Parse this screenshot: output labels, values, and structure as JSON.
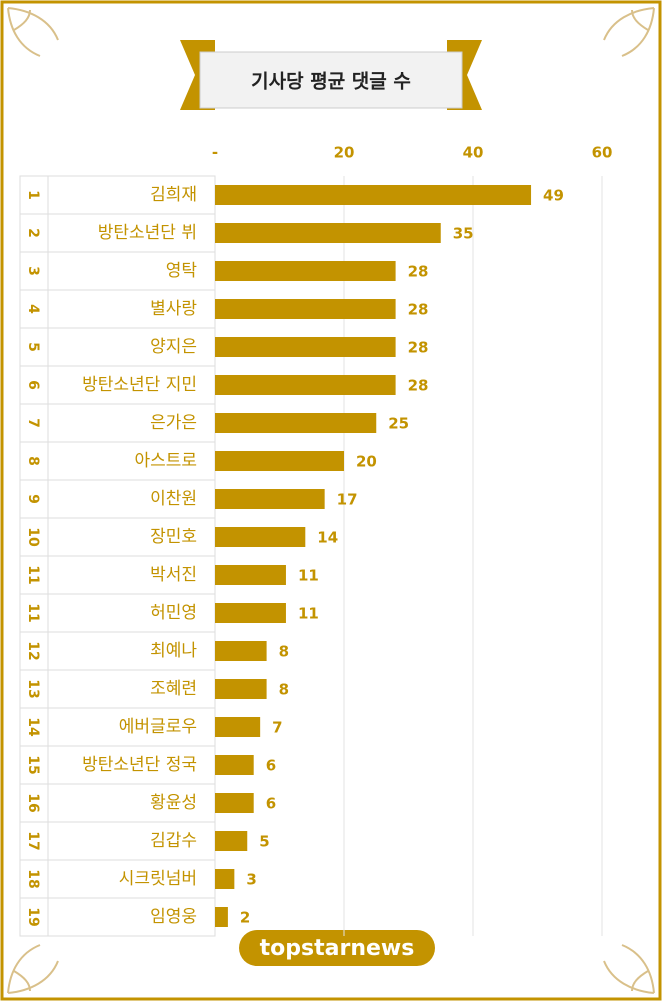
{
  "chart_data": {
    "type": "bar",
    "orientation": "horizontal",
    "title": "기사당 평균 댓글 수",
    "ranks": [
      "1",
      "2",
      "3",
      "4",
      "5",
      "6",
      "7",
      "8",
      "9",
      "10",
      "11",
      "11",
      "12",
      "13",
      "14",
      "15",
      "16",
      "17",
      "18",
      "19"
    ],
    "categories": [
      "김희재",
      "방탄소년단 뷔",
      "영탁",
      "별사랑",
      "양지은",
      "방탄소년단 지민",
      "은가은",
      "아스트로",
      "이찬원",
      "장민호",
      "박서진",
      "허민영",
      "최예나",
      "조혜련",
      "에버글로우",
      "방탄소년단 정국",
      "황윤성",
      "김갑수",
      "시크릿넘버",
      "임영웅"
    ],
    "values": [
      49,
      35,
      28,
      28,
      28,
      28,
      25,
      20,
      17,
      14,
      11,
      11,
      8,
      8,
      7,
      6,
      6,
      5,
      3,
      2
    ],
    "color": "#c39300",
    "xlim": [
      0,
      60
    ],
    "xticks": [
      {
        "value": 0,
        "label": "-"
      },
      20,
      40,
      60
    ],
    "grid": true
  },
  "logo": "topstarnews"
}
